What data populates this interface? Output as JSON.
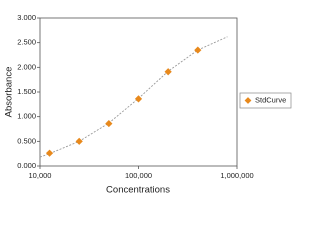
{
  "chart_data": {
    "type": "scatter",
    "x_label": "Concentrations",
    "y_label": "Absorbance",
    "x_scale": "log",
    "xlim": [
      10000,
      1000000
    ],
    "xticks": [
      {
        "value": 10000,
        "label": "10,000"
      },
      {
        "value": 100000,
        "label": "100,000"
      },
      {
        "value": 1000000,
        "label": "1,000,000"
      }
    ],
    "ylim": [
      0,
      3
    ],
    "yticks": [
      {
        "value": 0,
        "label": "0.000"
      },
      {
        "value": 0.5,
        "label": "0.500"
      },
      {
        "value": 1,
        "label": "1.000"
      },
      {
        "value": 1.5,
        "label": "1.500"
      },
      {
        "value": 2,
        "label": "2.000"
      },
      {
        "value": 2.5,
        "label": "2.500"
      },
      {
        "value": 3,
        "label": "3.000"
      }
    ],
    "grid": false,
    "legend": "right",
    "series": [
      {
        "name": "StdCurve",
        "color": "#e8891c",
        "marker": "diamond",
        "x": [
          12500,
          25000,
          50000,
          100000,
          200000,
          400000
        ],
        "values": [
          0.26,
          0.5,
          0.86,
          1.36,
          1.91,
          2.35
        ]
      }
    ],
    "fit_curve": {
      "color": "#999999",
      "x": [
        10000,
        12500,
        25000,
        50000,
        100000,
        200000,
        400000,
        800000
      ],
      "y": [
        0.18,
        0.25,
        0.5,
        0.87,
        1.37,
        1.92,
        2.35,
        2.62
      ]
    }
  }
}
